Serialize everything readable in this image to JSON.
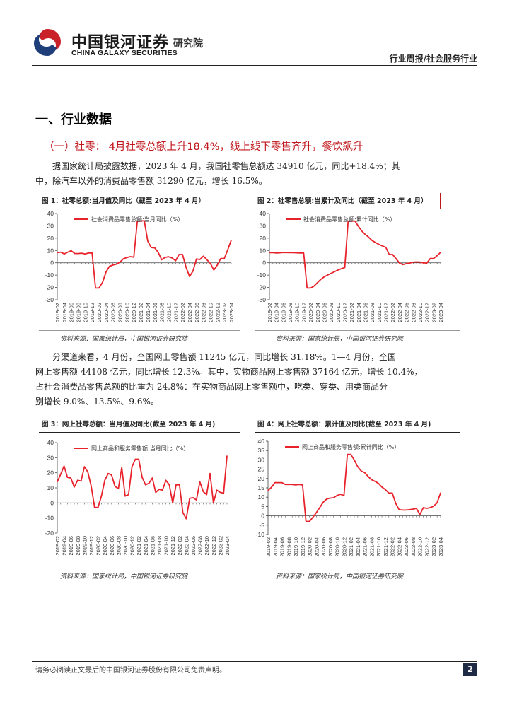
{
  "header": {
    "logo_cn": "中国银河证券",
    "logo_en": "CHINA GALAXY SECURITIES",
    "institute": "研究院",
    "report_type": "行业周报/社会服务行业"
  },
  "section": {
    "title": "一、行业数据",
    "subtitle": "（一）社零： 4月社零总额上升18.4%，线上线下零售齐升，餐饮飙升"
  },
  "paragraphs": [
    [
      "据国家统计局披露数据，2023 年 4 月，我国社零售总额达 34910 亿元，同比+18.4%；其",
      "中，除汽车以外的消费品零售额 31290 亿元，增长 16.5%。"
    ],
    [
      "分渠道来看，4 月份，全国网上零售额 11245 亿元，同比增长 31.18%。1—4 月份，全国",
      "网上零售额 44108 亿元，同比增长 12.3%。其中，实物商品网上零售额 37164 亿元，增长 10.4%，",
      "占社会消费品零售总额的比重为 24.8%：在实物商品网上零售额中，吃类、穿类、用类商品分",
      "别增长 9.0%、13.5%、9.6%。"
    ]
  ],
  "figures": [
    {
      "title": "图 1：社零总额:当月值及同比（截至 2023 年 4 月）",
      "source": "资料来源：国家统计局，中国银河证券研究院"
    },
    {
      "title": "图 2：社零售总额:当累计及同比（截至 2023 年 4 月）",
      "source": "资料来源：国家统计局，中国银河证券研究院"
    },
    {
      "title": "图 3：网上社零总额：当月值及同比(截至 2023 年 4 月)",
      "source": "资料来源：国家统计局，中国银河证券研究院"
    },
    {
      "title": "图 4：网上社零总额：累计值及同比(截至 2023 年 4 月)",
      "source": "资料来源：国家统计局，中国银河证券研究院"
    }
  ],
  "chart_data": [
    {
      "type": "line",
      "ylim": [
        -30,
        40
      ],
      "yticks": [
        -30,
        -20,
        -10,
        0,
        10,
        20,
        30,
        40
      ],
      "grid": false,
      "legend": "top-left",
      "color": "#e8222b",
      "x": [
        "2019-02",
        "2019-03",
        "2019-04",
        "2019-05",
        "2019-06",
        "2019-07",
        "2019-08",
        "2019-09",
        "2019-10",
        "2019-11",
        "2019-12",
        "2020-01",
        "2020-02",
        "2020-03",
        "2020-04",
        "2020-05",
        "2020-06",
        "2020-07",
        "2020-08",
        "2020-09",
        "2020-10",
        "2020-11",
        "2020-12",
        "2021-01",
        "2021-02",
        "2021-03",
        "2021-04",
        "2021-05",
        "2021-06",
        "2021-07",
        "2021-08",
        "2021-09",
        "2021-10",
        "2021-11",
        "2021-12",
        "2022-01",
        "2022-02",
        "2022-03",
        "2022-04",
        "2022-05",
        "2022-06",
        "2022-07",
        "2022-08",
        "2022-09",
        "2022-10",
        "2022-11",
        "2022-12",
        "2023-01",
        "2023-02",
        "2023-03",
        "2023-04"
      ],
      "xticks": [
        "2019-02",
        "2019-04",
        "2019-06",
        "2019-08",
        "2019-10",
        "2019-12",
        "2020-02",
        "2020-04",
        "2020-06",
        "2020-08",
        "2020-10",
        "2020-12",
        "2021-02",
        "2021-04",
        "2021-06",
        "2021-08",
        "2021-10",
        "2021-12",
        "2022-02",
        "2022-04",
        "2022-06",
        "2022-08",
        "2022-10",
        "2022-12",
        "2023-02",
        "2023-04"
      ],
      "series": [
        {
          "name": "社会消费品零售总额:当月同比（%）",
          "values": [
            8.2,
            8.7,
            7.2,
            8.6,
            9.8,
            7.6,
            7.5,
            7.8,
            7.2,
            8.0,
            8.0,
            -20.5,
            -20.5,
            -15.8,
            -7.5,
            -2.8,
            -1.8,
            -1.1,
            0.5,
            3.3,
            4.3,
            5.0,
            4.6,
            33.8,
            33.8,
            34.2,
            17.7,
            12.4,
            12.1,
            8.5,
            2.5,
            4.4,
            4.9,
            3.9,
            1.7,
            6.7,
            6.7,
            -3.5,
            -11.1,
            -6.7,
            3.1,
            2.7,
            5.4,
            2.5,
            -0.5,
            -5.9,
            -1.8,
            3.5,
            3.5,
            10.6,
            18.4
          ]
        }
      ]
    },
    {
      "type": "line",
      "ylim": [
        -30,
        40
      ],
      "yticks": [
        -30,
        -20,
        -10,
        0,
        10,
        20,
        30,
        40
      ],
      "grid": false,
      "legend": "top-left",
      "color": "#e8222b",
      "x": [
        "2019-02",
        "2019-03",
        "2019-04",
        "2019-05",
        "2019-06",
        "2019-07",
        "2019-08",
        "2019-09",
        "2019-10",
        "2019-11",
        "2019-12",
        "2020-01",
        "2020-02",
        "2020-03",
        "2020-04",
        "2020-05",
        "2020-06",
        "2020-07",
        "2020-08",
        "2020-09",
        "2020-10",
        "2020-11",
        "2020-12",
        "2021-01",
        "2021-02",
        "2021-03",
        "2021-04",
        "2021-05",
        "2021-06",
        "2021-07",
        "2021-08",
        "2021-09",
        "2021-10",
        "2021-11",
        "2021-12",
        "2022-01",
        "2022-02",
        "2022-03",
        "2022-04",
        "2022-05",
        "2022-06",
        "2022-07",
        "2022-08",
        "2022-09",
        "2022-10",
        "2022-11",
        "2022-12",
        "2023-01",
        "2023-02",
        "2023-03",
        "2023-04"
      ],
      "xticks": [
        "2019-02",
        "2019-04",
        "2019-06",
        "2019-08",
        "2019-10",
        "2019-12",
        "2020-02",
        "2020-04",
        "2020-06",
        "2020-08",
        "2020-10",
        "2020-12",
        "2021-02",
        "2021-04",
        "2021-06",
        "2021-08",
        "2021-10",
        "2021-12",
        "2022-02",
        "2022-04",
        "2022-06",
        "2022-08",
        "2022-10",
        "2022-12",
        "2023-02",
        "2023-04"
      ],
      "series": [
        {
          "name": "社会消费品零售总额:累计同比（%）",
          "values": [
            8.2,
            8.3,
            8.0,
            8.1,
            8.4,
            8.3,
            8.2,
            8.2,
            8.1,
            8.0,
            8.0,
            -20.5,
            -20.5,
            -19.0,
            -16.2,
            -13.5,
            -11.4,
            -9.9,
            -8.6,
            -7.2,
            -5.9,
            -4.8,
            -3.9,
            33.8,
            33.8,
            33.9,
            29.6,
            25.7,
            23.0,
            20.7,
            18.1,
            16.4,
            14.9,
            13.7,
            12.5,
            6.7,
            6.7,
            3.3,
            -0.2,
            -1.5,
            -0.7,
            -0.2,
            0.5,
            0.7,
            0.6,
            -0.1,
            -0.2,
            3.5,
            3.5,
            5.8,
            8.5
          ]
        }
      ]
    },
    {
      "type": "line",
      "ylim": [
        -20,
        40
      ],
      "yticks": [
        -20,
        -10,
        0,
        10,
        20,
        30,
        40
      ],
      "grid": false,
      "legend": "top-left",
      "color": "#e8222b",
      "x": [
        "2019-02",
        "2019-03",
        "2019-04",
        "2019-05",
        "2019-06",
        "2019-07",
        "2019-08",
        "2019-09",
        "2019-10",
        "2019-11",
        "2019-12",
        "2020-01",
        "2020-02",
        "2020-03",
        "2020-04",
        "2020-05",
        "2020-06",
        "2020-07",
        "2020-08",
        "2020-09",
        "2020-10",
        "2020-11",
        "2020-12",
        "2021-01",
        "2021-02",
        "2021-03",
        "2021-04",
        "2021-05",
        "2021-06",
        "2021-07",
        "2021-08",
        "2021-09",
        "2021-10",
        "2021-11",
        "2021-12",
        "2022-01",
        "2022-02",
        "2022-03",
        "2022-04",
        "2022-05",
        "2022-06",
        "2022-07",
        "2022-08",
        "2022-09",
        "2022-10",
        "2022-11",
        "2022-12",
        "2023-01",
        "2023-02",
        "2023-03",
        "2023-04"
      ],
      "xticks": [
        "2019-02",
        "2019-04",
        "2019-06",
        "2019-08",
        "2019-10",
        "2019-12",
        "2020-02",
        "2020-04",
        "2020-06",
        "2020-08",
        "2020-10",
        "2020-12",
        "2021-02",
        "2021-04",
        "2021-06",
        "2021-08",
        "2021-10",
        "2021-12",
        "2022-02",
        "2022-04",
        "2022-06",
        "2022-08",
        "2022-10",
        "2022-12",
        "2023-02",
        "2023-04"
      ],
      "series": [
        {
          "name": "网上商品和服务零售额:当月同比（%）",
          "values": [
            14.0,
            19.0,
            24.5,
            17.0,
            16.5,
            10.5,
            15.0,
            14.5,
            24.0,
            20.5,
            11.0,
            -3.0,
            -3.0,
            4.5,
            15.0,
            19.5,
            18.5,
            11.0,
            9.5,
            23.5,
            4.5,
            5.5,
            24.0,
            29.0,
            29.0,
            17.0,
            12.0,
            13.0,
            16.5,
            7.0,
            9.0,
            8.5,
            15.0,
            12.0,
            0.0,
            12.0,
            12.0,
            -6.5,
            -10.5,
            3.0,
            3.5,
            2.0,
            14.0,
            7.5,
            5.5,
            19.5,
            0.0,
            8.5,
            7.0,
            6.5,
            31.2
          ]
        }
      ]
    },
    {
      "type": "line",
      "ylim": [
        -10,
        40
      ],
      "yticks": [
        -10,
        -5,
        0,
        5,
        10,
        15,
        20,
        25,
        30,
        35,
        40
      ],
      "grid": false,
      "legend": "top-left",
      "color": "#e8222b",
      "x": [
        "2019-02",
        "2019-03",
        "2019-04",
        "2019-05",
        "2019-06",
        "2019-07",
        "2019-08",
        "2019-09",
        "2019-10",
        "2019-11",
        "2019-12",
        "2020-01",
        "2020-02",
        "2020-03",
        "2020-04",
        "2020-05",
        "2020-06",
        "2020-07",
        "2020-08",
        "2020-09",
        "2020-10",
        "2020-11",
        "2020-12",
        "2021-01",
        "2021-02",
        "2021-03",
        "2021-04",
        "2021-05",
        "2021-06",
        "2021-07",
        "2021-08",
        "2021-09",
        "2021-10",
        "2021-11",
        "2021-12",
        "2022-01",
        "2022-02",
        "2022-03",
        "2022-04",
        "2022-05",
        "2022-06",
        "2022-07",
        "2022-08",
        "2022-09",
        "2022-10",
        "2022-11",
        "2022-12",
        "2023-01",
        "2023-02",
        "2023-03",
        "2023-04"
      ],
      "xticks": [
        "2019-02",
        "2019-04",
        "2019-06",
        "2019-08",
        "2019-10",
        "2019-12",
        "2020-02",
        "2020-04",
        "2020-06",
        "2020-08",
        "2020-10",
        "2020-12",
        "2021-02",
        "2021-04",
        "2021-06",
        "2021-08",
        "2021-10",
        "2021-12",
        "2022-02",
        "2022-04",
        "2022-06",
        "2022-08",
        "2022-10",
        "2022-12",
        "2023-02",
        "2023-04"
      ],
      "series": [
        {
          "name": "网上商品和服务零售额:累计同比（%）",
          "values": [
            13.6,
            15.3,
            17.8,
            17.8,
            17.8,
            16.8,
            16.8,
            16.8,
            16.6,
            16.8,
            16.5,
            -3.0,
            -3.0,
            -0.8,
            1.7,
            4.5,
            7.3,
            9.0,
            9.5,
            9.7,
            10.9,
            11.5,
            10.9,
            32.9,
            32.9,
            29.9,
            26.3,
            24.0,
            23.2,
            21.1,
            19.4,
            18.5,
            17.4,
            15.4,
            14.1,
            12.2,
            12.2,
            6.7,
            3.3,
            3.1,
            3.1,
            3.3,
            3.6,
            4.0,
            0.7,
            4.4,
            4.0,
            4.4,
            5.2,
            7.0,
            12.3
          ]
        }
      ]
    }
  ]
}
